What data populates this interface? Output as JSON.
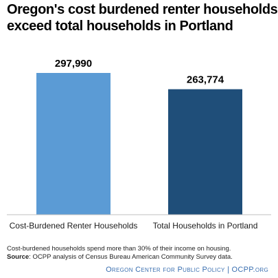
{
  "chart_data": {
    "type": "bar",
    "title_lines": [
      "Oregon's cost burdened renter households",
      "exceed total households in Portland"
    ],
    "categories": [
      "Cost-Burdened Renter Households",
      "Total Households in Portland"
    ],
    "values": [
      297990,
      263774
    ],
    "value_labels": [
      "297,990",
      "263,774"
    ],
    "bar_colors": [
      "#5b9bd5",
      "#1f4e79"
    ],
    "ylim": [
      0,
      297990
    ],
    "xlabel": "",
    "ylabel": "",
    "grid": false,
    "legend": "none"
  },
  "footnote": {
    "note": "Cost-burdened households spend more than 30% of their income on housing.",
    "source_label": "Source",
    "source_text": ": OCPP analysis of Census Bureau American Community  Survey data."
  },
  "credit": "Oregon Center for Public Policy | OCPP.org"
}
